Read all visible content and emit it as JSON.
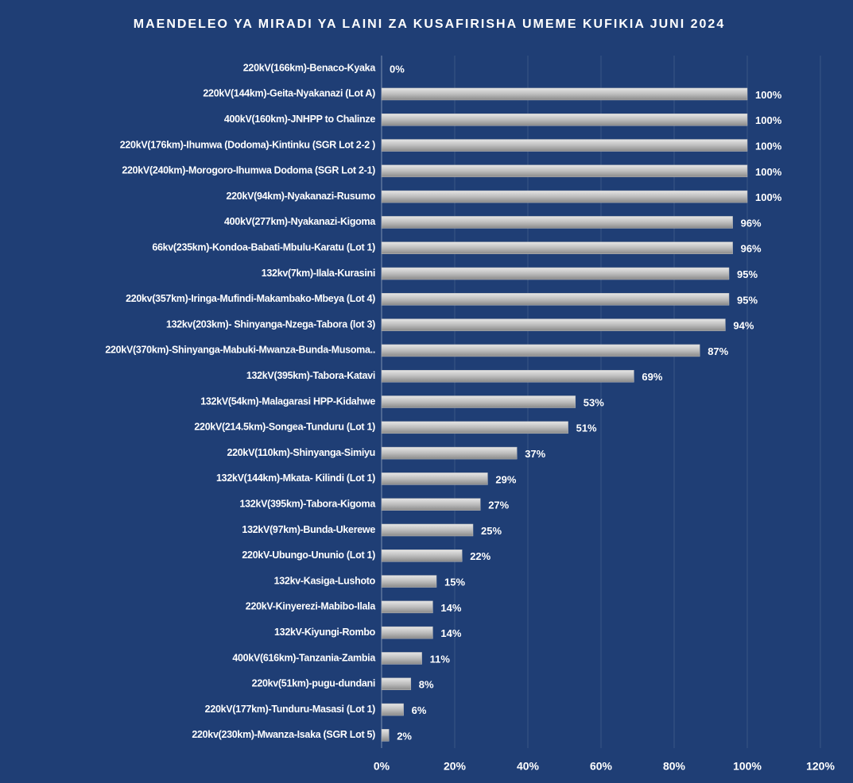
{
  "chart_data": {
    "type": "barh",
    "title": "MAENDELEO YA MIRADI YA LAINI ZA KUSAFIRISHA UMEME KUFIKIA JUNI 2024",
    "categories": [
      "220kV(166km)-Benaco-Kyaka",
      "220kV(144km)-Geita-Nyakanazi (Lot A)",
      "400kV(160km)-JNHPP to Chalinze",
      "220kV(176km)-Ihumwa (Dodoma)-Kintinku (SGR Lot 2-2 )",
      "220kV(240km)-Morogoro-Ihumwa Dodoma (SGR Lot 2-1)",
      "220kV(94km)-Nyakanazi-Rusumo",
      "400kV(277km)-Nyakanazi-Kigoma",
      "66kv(235km)-Kondoa-Babati-Mbulu-Karatu (Lot 1)",
      "132kv(7km)-Ilala-Kurasini",
      "220kv(357km)-Iringa-Mufindi-Makambako-Mbeya (Lot 4)",
      "132kv(203km)- Shinyanga-Nzega-Tabora (lot 3)",
      "220kV(370km)-Shinyanga-Mabuki-Mwanza-Bunda-Musoma..",
      "132kV(395km)-Tabora-Katavi",
      "132kV(54km)-Malagarasi HPP-Kidahwe",
      "220kV(214.5km)-Songea-Tunduru (Lot 1)",
      "220kV(110km)-Shinyanga-Simiyu",
      "132kV(144km)-Mkata- Kilindi (Lot 1)",
      "132kV(395km)-Tabora-Kigoma",
      "132kV(97km)-Bunda-Ukerewe",
      "220kV-Ubungo-Ununio (Lot 1)",
      "132kv-Kasiga-Lushoto",
      "220kV-Kinyerezi-Mabibo-Ilala",
      "132kV-Kiyungi-Rombo",
      "400kV(616km)-Tanzania-Zambia",
      "220kv(51km)-pugu-dundani",
      "220kV(177km)-Tunduru-Masasi (Lot 1)",
      "220kv(230km)-Mwanza-Isaka (SGR Lot 5)"
    ],
    "values": [
      0,
      100,
      100,
      100,
      100,
      100,
      96,
      96,
      95,
      95,
      94,
      87,
      69,
      53,
      51,
      37,
      29,
      27,
      25,
      22,
      15,
      14,
      14,
      11,
      8,
      6,
      2
    ],
    "value_labels": [
      "0%",
      "100%",
      "100%",
      "100%",
      "100%",
      "100%",
      "96%",
      "96%",
      "95%",
      "95%",
      "94%",
      "87%",
      "69%",
      "53%",
      "51%",
      "37%",
      "29%",
      "27%",
      "25%",
      "22%",
      "15%",
      "14%",
      "14%",
      "11%",
      "8%",
      "6%",
      "2%"
    ],
    "color": "#bdbdbd",
    "xlim": [
      0,
      120
    ],
    "xticks": [
      {
        "value": 0,
        "label": "0%"
      },
      {
        "value": 20,
        "label": "20%"
      },
      {
        "value": 40,
        "label": "40%"
      },
      {
        "value": 60,
        "label": "60%"
      },
      {
        "value": 80,
        "label": "80%"
      },
      {
        "value": 100,
        "label": "100%"
      },
      {
        "value": 120,
        "label": "120%"
      }
    ],
    "grid": true
  }
}
